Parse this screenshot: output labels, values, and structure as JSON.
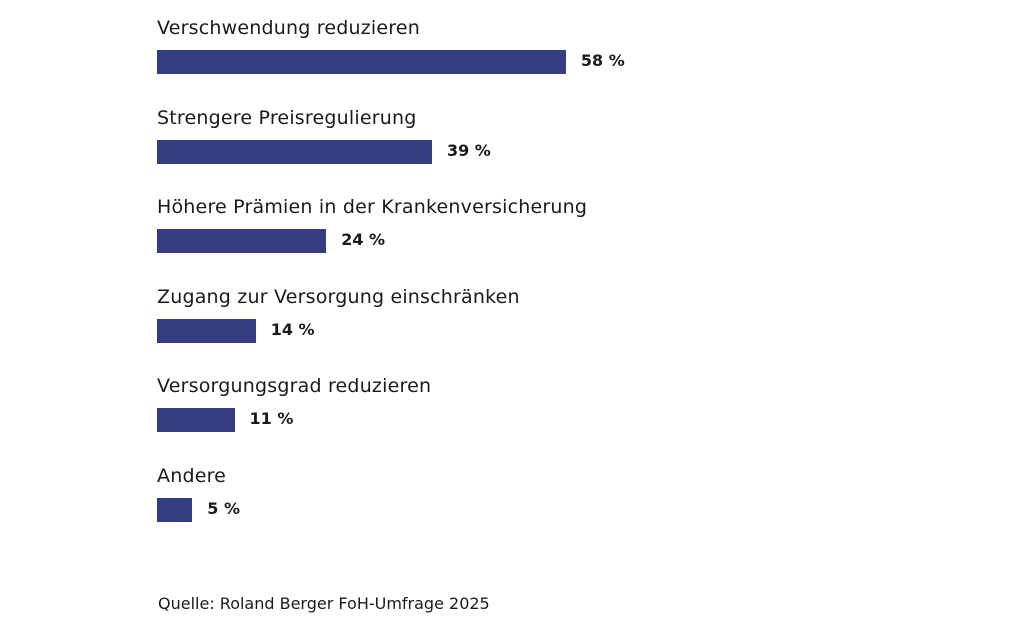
{
  "chart_data": {
    "type": "bar",
    "orientation": "horizontal",
    "categories": [
      "Verschwendung reduzieren",
      "Strengere Preisregulierung",
      "Höhere Prämien in der Krankenversicherung",
      "Zugang zur Versorgung einschränken",
      "Versorgungsgrad reduzieren",
      "Andere"
    ],
    "values": [
      58,
      39,
      24,
      14,
      11,
      5
    ],
    "value_labels": [
      "58 %",
      "39 %",
      "24 %",
      "14 %",
      "11 %",
      "5 %"
    ],
    "unit": "%",
    "xlim": [
      0,
      100
    ],
    "grid": false,
    "bar_color": "#363c82",
    "source": "Quelle: Roland Berger FoH-Umfrage 2025"
  }
}
